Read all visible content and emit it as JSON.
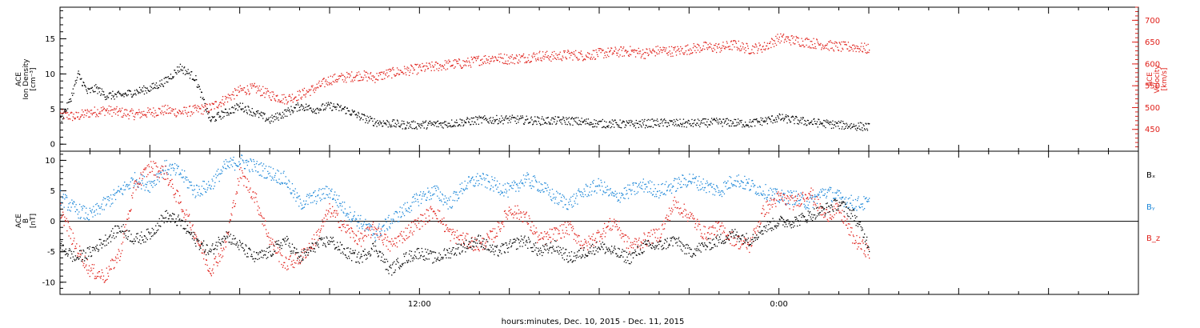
{
  "colors": {
    "black": "#000000",
    "red": "#e0201a",
    "blue": "#1a86d8"
  },
  "xaxis": {
    "label": "hours:minutes, Dec. 10, 2015 - Dec. 11, 2015",
    "start_hour": 0,
    "end_hour": 36,
    "tick_labels": [
      {
        "hour": 12,
        "text": "12:00"
      },
      {
        "hour": 24,
        "text": "0:00"
      }
    ]
  },
  "chart_data": [
    {
      "type": "scatter",
      "ylabel_lines": [
        "ACE",
        "Ion Density",
        "[cm⁻³]"
      ],
      "y2label_lines": [
        "ACE",
        "Velocity",
        "[km/s]"
      ],
      "ylim": [
        -1,
        19.5
      ],
      "yticks": [
        0,
        5,
        10,
        15
      ],
      "y2lim": [
        400,
        730
      ],
      "y2ticks": [
        450,
        500,
        550,
        600,
        650,
        700
      ],
      "series": [
        {
          "axis": "left",
          "color": "black",
          "x": [
            0.0,
            0.3,
            0.6,
            0.9,
            1.2,
            1.5,
            2.0,
            2.5,
            3.0,
            3.5,
            4.0,
            4.5,
            5.0,
            5.5,
            6.0,
            6.5,
            7.0,
            7.5,
            8.0,
            8.5,
            9.0,
            9.5,
            10.0,
            10.5,
            11.0,
            11.5,
            12.0,
            13,
            14,
            15,
            16,
            17,
            18,
            19,
            20,
            21,
            22,
            23,
            24,
            25,
            26,
            27
          ],
          "y": [
            3.5,
            6.0,
            10.0,
            7.5,
            8.0,
            7.0,
            7.0,
            7.5,
            8.0,
            9.0,
            11.0,
            9.5,
            3.5,
            4.5,
            5.5,
            4.5,
            3.5,
            4.5,
            5.5,
            5.0,
            5.5,
            5.0,
            4.0,
            3.2,
            3.0,
            2.8,
            2.8,
            3.0,
            3.5,
            3.6,
            3.4,
            3.4,
            3.0,
            2.9,
            3.1,
            3.0,
            3.2,
            3.0,
            3.8,
            3.2,
            2.8,
            2.5
          ]
        },
        {
          "axis": "right",
          "color": "red",
          "x": [
            0,
            0.5,
            1,
            1.5,
            2,
            2.5,
            3,
            3.5,
            4,
            4.5,
            5,
            5.5,
            6,
            6.5,
            7,
            7.5,
            8,
            8.5,
            9,
            9.5,
            10,
            10.5,
            11,
            11.5,
            12,
            12.5,
            13,
            13.5,
            14,
            14.5,
            15,
            15.5,
            16,
            16.5,
            17,
            17.5,
            18,
            18.5,
            19,
            19.5,
            20,
            20.5,
            21,
            21.5,
            22,
            22.5,
            23,
            23.5,
            24,
            24.5,
            25,
            25.5,
            26,
            26.5,
            27
          ],
          "y": [
            485,
            480,
            490,
            495,
            490,
            485,
            490,
            495,
            490,
            495,
            500,
            520,
            540,
            545,
            530,
            520,
            530,
            545,
            565,
            570,
            575,
            570,
            580,
            585,
            590,
            595,
            600,
            602,
            610,
            615,
            612,
            615,
            620,
            618,
            622,
            620,
            625,
            628,
            630,
            625,
            632,
            630,
            635,
            640,
            638,
            645,
            635,
            640,
            660,
            655,
            650,
            645,
            640,
            640,
            635
          ]
        }
      ]
    },
    {
      "type": "scatter",
      "ylabel_lines": [
        "ACE",
        "B",
        "[nT]"
      ],
      "ylim": [
        -12,
        11.5
      ],
      "yticks": [
        -10,
        -5,
        0,
        5,
        10
      ],
      "zero_line": true,
      "legend": [
        "Bₓ",
        "Bᵧ",
        "B_z"
      ],
      "series": [
        {
          "name": "Bx",
          "color": "black",
          "x": [
            0,
            0.5,
            1,
            1.5,
            2,
            2.5,
            3,
            3.5,
            4,
            4.5,
            5,
            5.5,
            6,
            6.5,
            7,
            7.5,
            8,
            8.5,
            9,
            9.5,
            10,
            10.5,
            11,
            11.5,
            12,
            12.5,
            13,
            13.5,
            14,
            14.5,
            15,
            15.5,
            16,
            16.5,
            17,
            17.5,
            18,
            18.5,
            19,
            19.5,
            20,
            20.5,
            21,
            21.5,
            22,
            22.5,
            23,
            23.5,
            24,
            24.5,
            25,
            25.5,
            26,
            26.5,
            27
          ],
          "y": [
            -4,
            -6,
            -5,
            -3,
            -1,
            -3,
            -2,
            1,
            0,
            -3,
            -5,
            -2,
            -4,
            -6,
            -5,
            -3,
            -6,
            -4,
            -3,
            -5,
            -6,
            -4,
            -8,
            -6,
            -5,
            -6,
            -5,
            -4,
            -3,
            -5,
            -4,
            -3,
            -5,
            -4,
            -6,
            -5,
            -4,
            -5,
            -6,
            -4,
            -4,
            -3,
            -5,
            -4,
            -3,
            -2,
            -3,
            -1,
            0,
            0,
            1,
            2,
            3,
            1,
            -4
          ]
        },
        {
          "name": "By",
          "color": "blue",
          "x": [
            0,
            0.5,
            1,
            1.5,
            2,
            2.5,
            3,
            3.5,
            4,
            4.5,
            5,
            5.5,
            6,
            6.5,
            7,
            7.5,
            8,
            8.5,
            9,
            9.5,
            10,
            10.5,
            11,
            11.5,
            12,
            12.5,
            13,
            13.5,
            14,
            14.5,
            15,
            15.5,
            16,
            16.5,
            17,
            17.5,
            18,
            18.5,
            19,
            19.5,
            20,
            20.5,
            21,
            21.5,
            22,
            22.5,
            23,
            23.5,
            24,
            24.5,
            25,
            25.5,
            26,
            26.5,
            27
          ],
          "y": [
            4,
            2,
            1,
            3,
            5,
            7,
            6,
            9,
            8,
            5,
            6,
            9,
            10,
            9,
            8,
            7,
            3,
            4,
            5,
            2,
            0,
            -2,
            0,
            2,
            4,
            5,
            3,
            6,
            7,
            6,
            5,
            7,
            6,
            4,
            3,
            5,
            6,
            4,
            5,
            6,
            5,
            6,
            7,
            6,
            5,
            7,
            6,
            5,
            4,
            4,
            3,
            5,
            4,
            3,
            3
          ]
        },
        {
          "name": "Bz",
          "color": "red",
          "x": [
            0,
            0.5,
            1,
            1.5,
            2,
            2.5,
            3,
            3.5,
            4,
            4.5,
            5,
            5.5,
            6,
            6.5,
            7,
            7.5,
            8,
            8.5,
            9,
            9.5,
            10,
            10.5,
            11,
            11.5,
            12,
            12.5,
            13,
            13.5,
            14,
            14.5,
            15,
            15.5,
            16,
            16.5,
            17,
            17.5,
            18,
            18.5,
            19,
            19.5,
            20,
            20.5,
            21,
            21.5,
            22,
            22.5,
            23,
            23.5,
            24,
            24.5,
            25,
            25.5,
            26,
            26.5,
            27
          ],
          "y": [
            2,
            -4,
            -8,
            -9,
            -5,
            6,
            9,
            8,
            3,
            -2,
            -8,
            -4,
            8,
            4,
            -3,
            -7,
            -6,
            -3,
            2,
            -1,
            -3,
            -1,
            -4,
            -2,
            0,
            2,
            -2,
            -3,
            -4,
            -2,
            2,
            1,
            -3,
            -2,
            -1,
            -4,
            -2,
            0,
            -4,
            -3,
            -2,
            3,
            1,
            -2,
            -1,
            -3,
            -4,
            2,
            4,
            3,
            5,
            1,
            2,
            -3,
            -5
          ]
        }
      ]
    }
  ]
}
